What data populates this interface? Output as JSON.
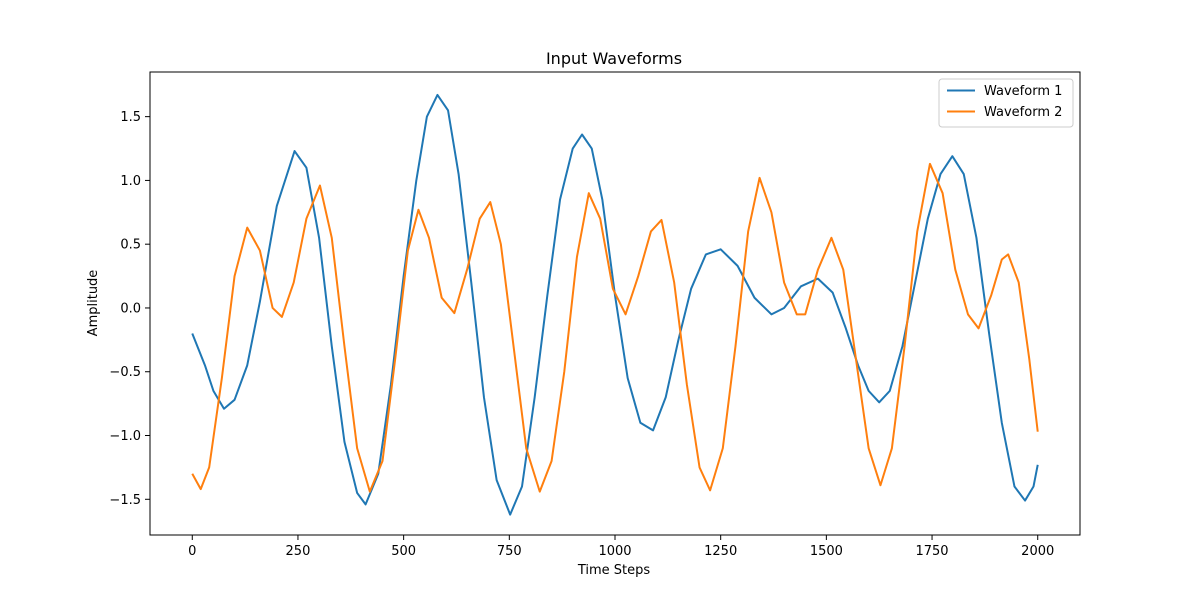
{
  "chart_data": {
    "type": "line",
    "title": "Input Waveforms",
    "xlabel": "Time Steps",
    "ylabel": "Amplitude",
    "xlim": [
      -100,
      2100
    ],
    "ylim": [
      -1.78,
      1.85
    ],
    "xticks": [
      0,
      250,
      500,
      750,
      1000,
      1250,
      1500,
      1750,
      2000
    ],
    "yticks": [
      -1.5,
      -1.0,
      -0.5,
      0.0,
      0.5,
      1.0,
      1.5
    ],
    "xtick_labels": [
      "0",
      "250",
      "500",
      "750",
      "1000",
      "1250",
      "1500",
      "1750",
      "2000"
    ],
    "ytick_labels": [
      "−1.5",
      "−1.0",
      "−0.5",
      "0.0",
      "0.5",
      "1.0",
      "1.5"
    ],
    "grid": false,
    "legend_position": "top-right",
    "series": [
      {
        "name": "Waveform 1",
        "color": "#1f77b4",
        "points": [
          [
            0,
            -0.2
          ],
          [
            30,
            -0.45
          ],
          [
            50,
            -0.65
          ],
          [
            75,
            -0.79
          ],
          [
            100,
            -0.72
          ],
          [
            130,
            -0.45
          ],
          [
            160,
            0.05
          ],
          [
            200,
            0.8
          ],
          [
            242,
            1.23
          ],
          [
            270,
            1.1
          ],
          [
            300,
            0.55
          ],
          [
            330,
            -0.3
          ],
          [
            360,
            -1.05
          ],
          [
            390,
            -1.45
          ],
          [
            410,
            -1.54
          ],
          [
            440,
            -1.3
          ],
          [
            470,
            -0.6
          ],
          [
            500,
            0.25
          ],
          [
            530,
            1.0
          ],
          [
            555,
            1.5
          ],
          [
            580,
            1.67
          ],
          [
            605,
            1.55
          ],
          [
            630,
            1.05
          ],
          [
            660,
            0.2
          ],
          [
            690,
            -0.7
          ],
          [
            720,
            -1.35
          ],
          [
            752,
            -1.62
          ],
          [
            780,
            -1.4
          ],
          [
            810,
            -0.7
          ],
          [
            840,
            0.1
          ],
          [
            870,
            0.85
          ],
          [
            900,
            1.25
          ],
          [
            922,
            1.36
          ],
          [
            945,
            1.25
          ],
          [
            970,
            0.85
          ],
          [
            1000,
            0.1
          ],
          [
            1030,
            -0.55
          ],
          [
            1060,
            -0.9
          ],
          [
            1090,
            -0.96
          ],
          [
            1120,
            -0.7
          ],
          [
            1150,
            -0.25
          ],
          [
            1180,
            0.15
          ],
          [
            1215,
            0.42
          ],
          [
            1250,
            0.46
          ],
          [
            1290,
            0.33
          ],
          [
            1330,
            0.08
          ],
          [
            1370,
            -0.05
          ],
          [
            1400,
            0.0
          ],
          [
            1440,
            0.17
          ],
          [
            1480,
            0.23
          ],
          [
            1515,
            0.12
          ],
          [
            1545,
            -0.15
          ],
          [
            1575,
            -0.45
          ],
          [
            1600,
            -0.65
          ],
          [
            1625,
            -0.74
          ],
          [
            1650,
            -0.65
          ],
          [
            1680,
            -0.3
          ],
          [
            1710,
            0.2
          ],
          [
            1740,
            0.7
          ],
          [
            1770,
            1.05
          ],
          [
            1798,
            1.19
          ],
          [
            1825,
            1.05
          ],
          [
            1855,
            0.55
          ],
          [
            1885,
            -0.2
          ],
          [
            1915,
            -0.9
          ],
          [
            1945,
            -1.4
          ],
          [
            1970,
            -1.51
          ],
          [
            1990,
            -1.4
          ],
          [
            2000,
            -1.23
          ]
        ]
      },
      {
        "name": "Waveform 2",
        "color": "#ff7f0e",
        "points": [
          [
            0,
            -1.3
          ],
          [
            20,
            -1.42
          ],
          [
            40,
            -1.25
          ],
          [
            70,
            -0.55
          ],
          [
            100,
            0.25
          ],
          [
            130,
            0.63
          ],
          [
            160,
            0.45
          ],
          [
            190,
            0.0
          ],
          [
            212,
            -0.07
          ],
          [
            240,
            0.2
          ],
          [
            270,
            0.7
          ],
          [
            302,
            0.96
          ],
          [
            330,
            0.55
          ],
          [
            360,
            -0.3
          ],
          [
            390,
            -1.1
          ],
          [
            420,
            -1.44
          ],
          [
            450,
            -1.2
          ],
          [
            480,
            -0.4
          ],
          [
            510,
            0.45
          ],
          [
            535,
            0.77
          ],
          [
            560,
            0.55
          ],
          [
            590,
            0.08
          ],
          [
            620,
            -0.04
          ],
          [
            650,
            0.3
          ],
          [
            680,
            0.7
          ],
          [
            705,
            0.83
          ],
          [
            730,
            0.5
          ],
          [
            760,
            -0.3
          ],
          [
            790,
            -1.1
          ],
          [
            822,
            -1.44
          ],
          [
            850,
            -1.2
          ],
          [
            880,
            -0.5
          ],
          [
            910,
            0.4
          ],
          [
            938,
            0.9
          ],
          [
            965,
            0.7
          ],
          [
            995,
            0.15
          ],
          [
            1025,
            -0.05
          ],
          [
            1055,
            0.25
          ],
          [
            1085,
            0.6
          ],
          [
            1110,
            0.69
          ],
          [
            1140,
            0.2
          ],
          [
            1170,
            -0.6
          ],
          [
            1200,
            -1.25
          ],
          [
            1225,
            -1.43
          ],
          [
            1255,
            -1.1
          ],
          [
            1285,
            -0.3
          ],
          [
            1315,
            0.6
          ],
          [
            1342,
            1.02
          ],
          [
            1370,
            0.75
          ],
          [
            1400,
            0.2
          ],
          [
            1430,
            -0.05
          ],
          [
            1450,
            -0.05
          ],
          [
            1480,
            0.3
          ],
          [
            1512,
            0.55
          ],
          [
            1540,
            0.3
          ],
          [
            1570,
            -0.4
          ],
          [
            1600,
            -1.1
          ],
          [
            1628,
            -1.39
          ],
          [
            1655,
            -1.1
          ],
          [
            1685,
            -0.3
          ],
          [
            1715,
            0.6
          ],
          [
            1745,
            1.13
          ],
          [
            1775,
            0.9
          ],
          [
            1805,
            0.3
          ],
          [
            1835,
            -0.05
          ],
          [
            1860,
            -0.16
          ],
          [
            1890,
            0.1
          ],
          [
            1915,
            0.38
          ],
          [
            1930,
            0.42
          ],
          [
            1955,
            0.2
          ],
          [
            1980,
            -0.4
          ],
          [
            2000,
            -0.97
          ]
        ]
      }
    ]
  }
}
